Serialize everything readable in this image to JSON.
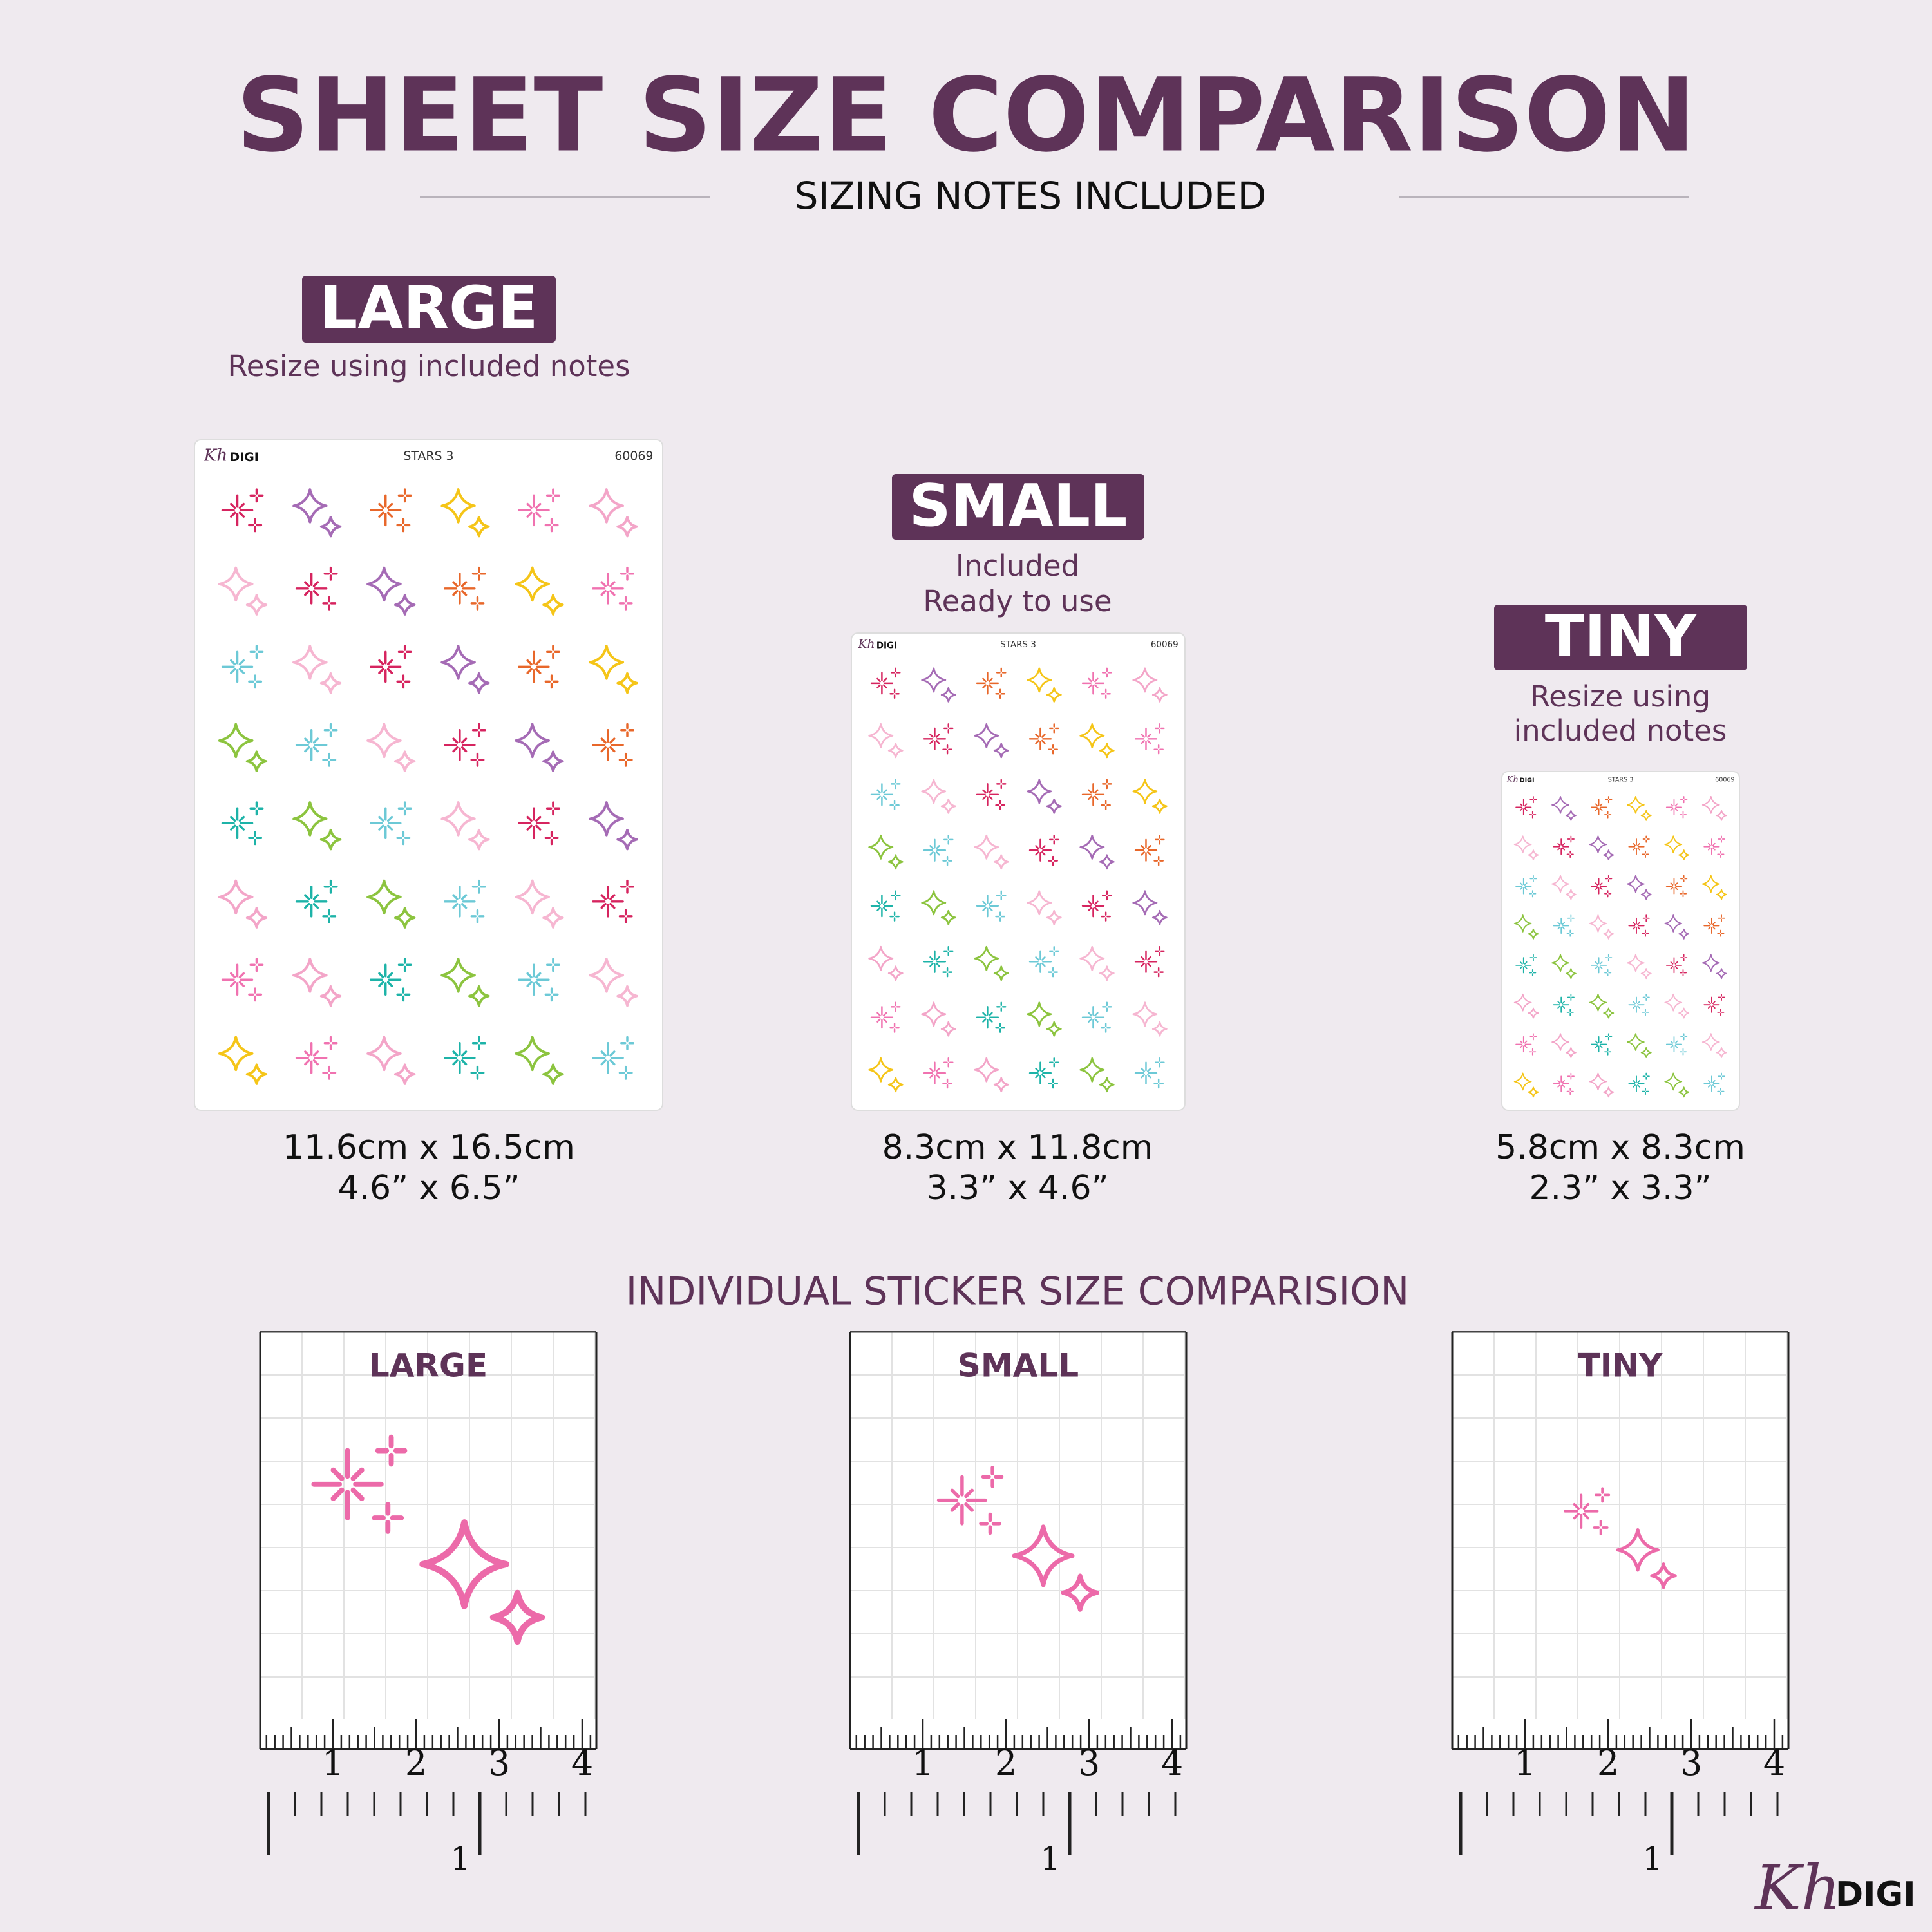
{
  "header": {
    "title": "SHEET SIZE COMPARISON",
    "subtitle": "SIZING NOTES INCLUDED"
  },
  "sheets": [
    {
      "label": "LARGE",
      "note": [
        "Resize using included notes"
      ],
      "sheet_logo": "Kh",
      "sheet_brand": "DIGI",
      "sheet_name": "STARS 3",
      "sheet_code": "60069",
      "size_cm": "11.6cm x 16.5cm",
      "size_in": "4.6” x 6.5”"
    },
    {
      "label": "SMALL",
      "note": [
        "Included",
        "Ready to use"
      ],
      "sheet_logo": "Kh",
      "sheet_brand": "DIGI",
      "sheet_name": "STARS 3",
      "sheet_code": "60069",
      "size_cm": "8.3cm x 11.8cm",
      "size_in": "3.3” x 4.6”"
    },
    {
      "label": "TINY",
      "note": [
        "Resize using",
        "included notes"
      ],
      "sheet_logo": "Kh",
      "sheet_brand": "DIGI",
      "sheet_name": "STARS 3",
      "sheet_code": "60069",
      "size_cm": "5.8cm x 8.3cm",
      "size_in": "2.3” x 3.3”"
    }
  ],
  "individual": {
    "title": "INDIVIDUAL STICKER SIZE COMPARISION",
    "panels": [
      {
        "label": "LARGE"
      },
      {
        "label": "SMALL"
      },
      {
        "label": "TINY"
      }
    ],
    "cm_labels": [
      "1",
      "2",
      "3",
      "4"
    ],
    "inch_label": "1"
  },
  "footer": {
    "logo": "Kh",
    "brand": "DIGI"
  }
}
